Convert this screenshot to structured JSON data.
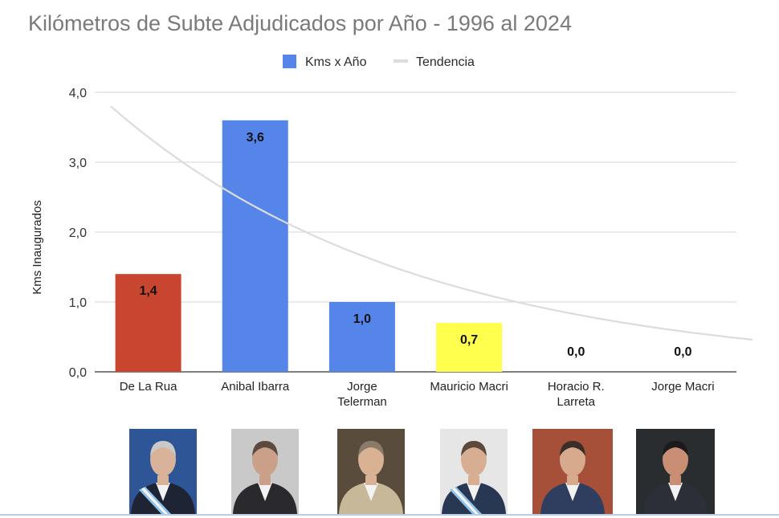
{
  "chart_data": {
    "type": "bar",
    "title": "Kilómetros de Subte Adjudicados por Año - 1996 al 2024",
    "ylabel": "Kms Inaugurados",
    "xlabel": "",
    "categories": [
      "De La Rua",
      "Anibal Ibarra",
      "Jorge Telerman",
      "Mauricio Macri",
      "Horacio R. Larreta",
      "Jorge Macri"
    ],
    "category_lines": [
      [
        "De La Rua"
      ],
      [
        "Anibal Ibarra"
      ],
      [
        "Jorge",
        "Telerman"
      ],
      [
        "Mauricio Macri"
      ],
      [
        "Horacio R.",
        "Larreta"
      ],
      [
        "Jorge Macri"
      ]
    ],
    "series": [
      {
        "name": "Kms x Año",
        "values": [
          1.4,
          3.6,
          1.0,
          0.7,
          0.0,
          0.0
        ],
        "color": "#5585e8"
      },
      {
        "name": "Tendencia",
        "type": "trendline",
        "color": "#dcdcdc",
        "x_start": -0.35,
        "x_end": 5.65,
        "y_start": 3.8,
        "y_end": 0.46
      }
    ],
    "bar_colors": [
      "#c8462f",
      "#5585e8",
      "#5585e8",
      "#ffff4d",
      "#5585e8",
      "#5585e8"
    ],
    "data_labels": [
      "1,4",
      "3,6",
      "1,0",
      "0,7",
      "0,0",
      "0,0"
    ],
    "ylim": [
      0,
      4
    ],
    "yticks": [
      0,
      1,
      2,
      3,
      4
    ],
    "ytick_labels": [
      "0,0",
      "1,0",
      "2,0",
      "3,0",
      "4,0"
    ],
    "grid": true,
    "legend": "top-center"
  },
  "photos": [
    {
      "name": "photo-de-la-rua",
      "bg": "#2e5596",
      "suit": "#1e2433",
      "skin": "#d8b39a",
      "hair": "#c9c9c9",
      "sash": true
    },
    {
      "name": "photo-anibal-ibarra",
      "bg": "#c9c9c9",
      "suit": "#2a2a2e",
      "skin": "#caa089",
      "hair": "#5a4a40",
      "sash": false
    },
    {
      "name": "photo-jorge-telerman",
      "bg": "#5a4c3c",
      "suit": "#c7b899",
      "skin": "#d9b294",
      "hair": "#8a7a6a",
      "sash": false
    },
    {
      "name": "photo-mauricio-macri",
      "bg": "#e6e6e6",
      "suit": "#283752",
      "skin": "#d8ae92",
      "hair": "#5b4a3c",
      "sash": true
    },
    {
      "name": "photo-horacio-larreta",
      "bg": "#a6503a",
      "suit": "#2f3d5e",
      "skin": "#d7aa8d",
      "hair": "#3a2f28",
      "sash": false
    },
    {
      "name": "photo-jorge-macri",
      "bg": "#2a2d30",
      "suit": "#2c2f38",
      "skin": "#c98f74",
      "hair": "#1c1a1a",
      "sash": false
    }
  ]
}
